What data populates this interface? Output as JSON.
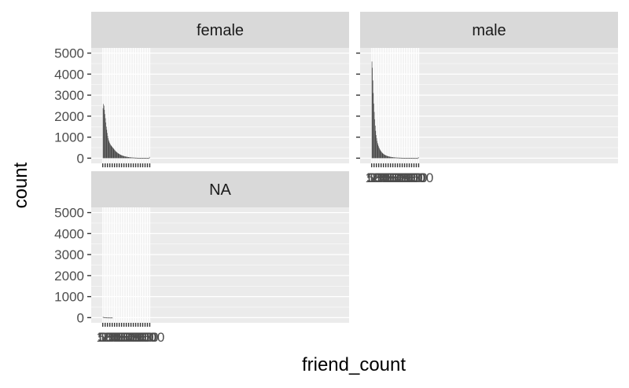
{
  "chart_data": {
    "type": "bar",
    "subtype": "histogram",
    "facet_by": "gender",
    "xlabel": "friend_count",
    "ylabel": "count",
    "xlim": [
      0,
      5000
    ],
    "ylim": [
      0,
      5000
    ],
    "x_ticks": [
      0,
      50,
      100,
      150,
      200,
      250,
      300,
      350,
      400,
      450,
      500,
      550,
      600,
      650,
      700,
      750,
      800,
      850,
      900,
      950,
      1000
    ],
    "x_tick_labels": [
      "0",
      "50",
      "100",
      "150",
      "200",
      "250",
      "300",
      "350",
      "400",
      "450",
      "500",
      "550",
      "600",
      "650",
      "700",
      "750",
      "800",
      "850",
      "900",
      "950",
      "1000"
    ],
    "y_ticks": [
      0,
      1000,
      2000,
      3000,
      4000,
      5000
    ],
    "y_tick_labels": [
      "0",
      "1000",
      "2000",
      "3000",
      "4000",
      "5000"
    ],
    "bin_width": 10,
    "bar_color": "#444444",
    "panel_background": "#ebebeb",
    "strip_background": "#d9d9d9",
    "grid": true,
    "panels": [
      {
        "name": "female",
        "counts": [
          2380,
          2580,
          2500,
          2300,
          2100,
          1900,
          1700,
          1500,
          1350,
          1200,
          1060,
          950,
          860,
          790,
          730,
          680,
          640,
          610,
          580,
          550,
          520,
          500,
          470,
          440,
          410,
          380,
          355,
          330,
          310,
          290,
          270,
          250,
          235,
          220,
          205,
          190,
          178,
          166,
          155,
          145,
          135,
          126,
          118,
          110,
          102,
          95,
          89,
          83,
          78,
          73,
          68,
          64,
          60,
          56,
          52,
          49,
          46,
          43,
          40,
          38,
          36,
          34,
          32,
          30,
          28,
          27,
          25,
          24,
          23,
          21,
          20,
          19,
          18,
          17,
          16,
          15,
          15,
          14,
          13,
          12,
          12,
          11,
          11,
          10,
          10,
          9,
          9,
          8,
          8,
          8,
          7,
          7,
          7,
          6,
          6,
          6,
          6,
          5,
          5,
          60
        ]
      },
      {
        "name": "male",
        "counts": [
          4600,
          4300,
          3700,
          3100,
          2600,
          2200,
          1850,
          1550,
          1300,
          1100,
          950,
          820,
          720,
          640,
          570,
          510,
          460,
          415,
          375,
          340,
          310,
          280,
          255,
          232,
          212,
          194,
          178,
          164,
          151,
          139,
          128,
          118,
          109,
          101,
          94,
          87,
          81,
          75,
          70,
          65,
          61,
          57,
          53,
          50,
          47,
          44,
          41,
          39,
          37,
          35,
          33,
          31,
          29,
          28,
          26,
          25,
          24,
          23,
          22,
          21,
          20,
          19,
          18,
          17,
          16,
          15,
          15,
          14,
          13,
          13,
          12,
          12,
          11,
          11,
          10,
          10,
          9,
          9,
          9,
          8,
          8,
          8,
          7,
          7,
          7,
          7,
          6,
          6,
          6,
          6,
          5,
          5,
          5,
          5,
          5,
          5,
          4,
          4,
          4,
          50
        ]
      },
      {
        "name": "NA",
        "counts": [
          30,
          25,
          20,
          15,
          10,
          8,
          6,
          5,
          4,
          3,
          3,
          2,
          2,
          2,
          1,
          1,
          1,
          1,
          1,
          1,
          1,
          0,
          0,
          0,
          0,
          0,
          0,
          0,
          0,
          0,
          0,
          0,
          0,
          0,
          0,
          0,
          0,
          0,
          0,
          0,
          0,
          0,
          0,
          0,
          0,
          0,
          0,
          0,
          0,
          0,
          0,
          0,
          0,
          0,
          0,
          0,
          0,
          0,
          0,
          0,
          0,
          0,
          0,
          0,
          0,
          0,
          0,
          0,
          0,
          0,
          0,
          0,
          0,
          0,
          0,
          0,
          0,
          0,
          0,
          0,
          0,
          0,
          0,
          0,
          0,
          0,
          0,
          0,
          0,
          0,
          0,
          0,
          0,
          0,
          0,
          0,
          0,
          0,
          0,
          0
        ]
      }
    ]
  }
}
